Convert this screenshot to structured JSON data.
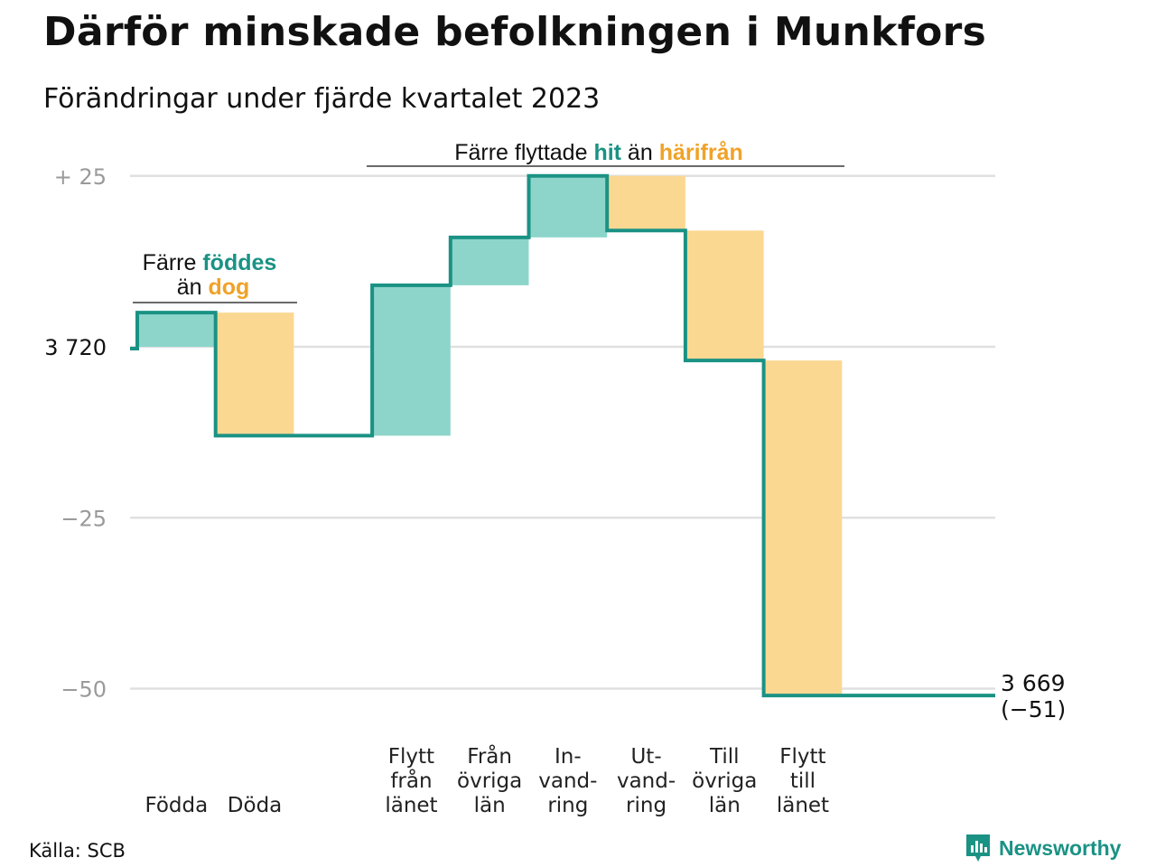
{
  "title": "Därför minskade befolkningen i Munkfors",
  "subtitle": "Förändringar under fjärde kvartalet 2023",
  "annotations": {
    "births": {
      "line1_prefix": "Färre",
      "line1_highlight": "föddes",
      "line2_prefix": "än",
      "line2_highlight": "dog"
    },
    "migration": {
      "prefix": "Färre flyttade",
      "highlight1": "hit",
      "middle": "än",
      "highlight2": "härifrån"
    }
  },
  "colors": {
    "increase": "#8dd5cb",
    "decrease": "#fbd892",
    "line": "#1a9284",
    "accent_teal": "#1a9284",
    "accent_orange": "#f0a227",
    "grid": "#e0e0e0",
    "tick_text": "#9a9a9a"
  },
  "chart_data": {
    "type": "waterfall",
    "start_value": 3720,
    "start_label": "3  720",
    "end_value": 3669,
    "end_label_line1": "3 669",
    "end_label_line2": "(−51)",
    "yticks": [
      {
        "value": 25,
        "label": "+  25"
      },
      {
        "value": 0,
        "label": ""
      },
      {
        "value": -25,
        "label": "−25"
      },
      {
        "value": -50,
        "label": "−50"
      }
    ],
    "ylim": [
      -55,
      29
    ],
    "categories": [
      {
        "label": [
          "Födda"
        ],
        "value": 5
      },
      {
        "label": [
          "Döda"
        ],
        "value": -18
      },
      {
        "label": [],
        "value": 0
      },
      {
        "label": [
          "Flytt",
          "från",
          "länet"
        ],
        "value": 22
      },
      {
        "label": [
          "Från",
          "övriga",
          "län"
        ],
        "value": 7
      },
      {
        "label": [
          "In-",
          "vand-",
          "ring"
        ],
        "value": 9
      },
      {
        "label": [
          "Ut-",
          "vand-",
          "ring"
        ],
        "value": -8
      },
      {
        "label": [
          "Till",
          "övriga",
          "län"
        ],
        "value": -19
      },
      {
        "label": [
          "Flytt",
          "till",
          "länet"
        ],
        "value": -49
      }
    ]
  },
  "source": "Källa: SCB",
  "logo": {
    "text": "Newsworthy",
    "icon": "newsworthy-logo-icon"
  }
}
